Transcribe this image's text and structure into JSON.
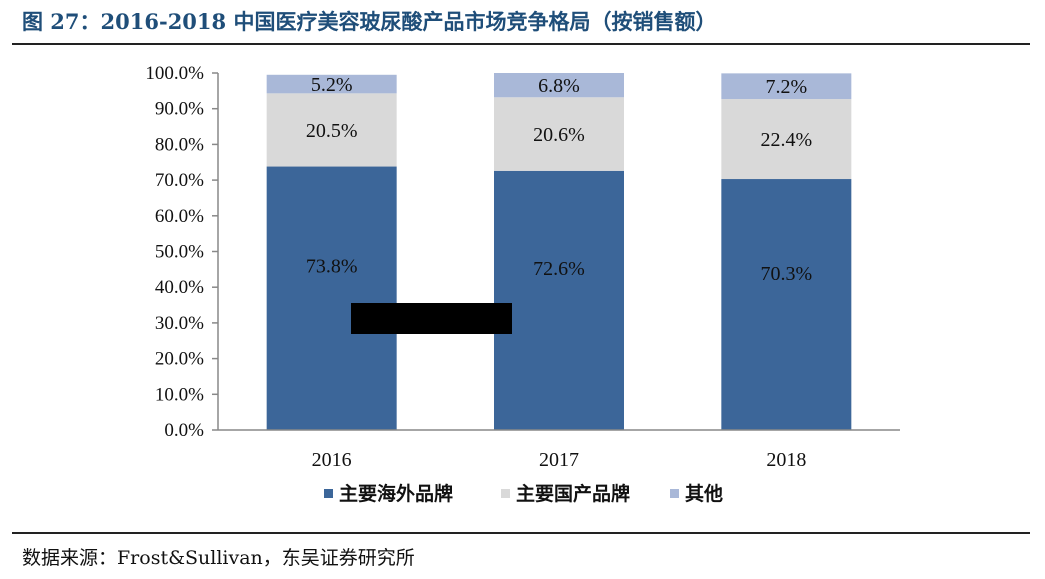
{
  "title": "图 27：2016-2018 中国医疗美容玻尿酸产品市场竞争格局（按销售额）",
  "source": "数据来源：Frost&Sullivan，东吴证券研究所",
  "chart_data": {
    "type": "bar",
    "stacked": true,
    "categories": [
      "2016",
      "2017",
      "2018"
    ],
    "series": [
      {
        "name": "主要海外品牌",
        "values": [
          73.8,
          72.6,
          70.3
        ],
        "labels": [
          "73.8%",
          "72.6%",
          "70.3%"
        ],
        "color": "#3c6699"
      },
      {
        "name": "主要国产品牌",
        "values": [
          20.5,
          20.6,
          22.4
        ],
        "labels": [
          "20.5%",
          "20.6%",
          "22.4%"
        ],
        "color": "#d9d9d9"
      },
      {
        "name": "其他",
        "values": [
          5.2,
          6.8,
          7.2
        ],
        "labels": [
          "5.2%",
          "6.8%",
          "7.2%"
        ],
        "color": "#a9b8d8"
      }
    ],
    "yticks": [
      "0.0%",
      "10.0%",
      "20.0%",
      "30.0%",
      "40.0%",
      "50.0%",
      "60.0%",
      "70.0%",
      "80.0%",
      "90.0%",
      "100.0%"
    ],
    "ylim": [
      0,
      100
    ],
    "grid": false,
    "legend": "bottom",
    "text_color": "#111111"
  }
}
